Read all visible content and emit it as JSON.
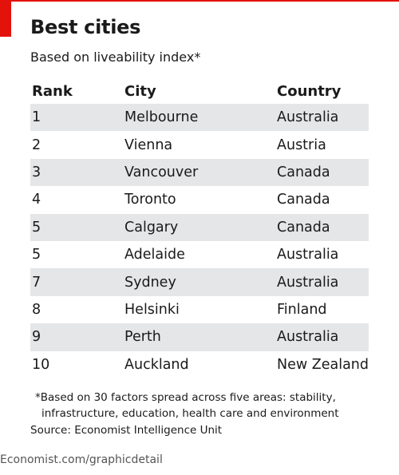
{
  "accent_color": "#e3120b",
  "header": {
    "title": "Best cities",
    "subtitle": "Based on liveability index*"
  },
  "chart_data": {
    "type": "table",
    "columns": [
      "Rank",
      "City",
      "Country"
    ],
    "rows": [
      [
        "1",
        "Melbourne",
        "Australia"
      ],
      [
        "2",
        "Vienna",
        "Austria"
      ],
      [
        "3",
        "Vancouver",
        "Canada"
      ],
      [
        "4",
        "Toronto",
        "Canada"
      ],
      [
        "5",
        "Calgary",
        "Canada"
      ],
      [
        "5",
        "Adelaide",
        "Australia"
      ],
      [
        "7",
        "Sydney",
        "Australia"
      ],
      [
        "8",
        "Helsinki",
        "Finland"
      ],
      [
        "9",
        "Perth",
        "Australia"
      ],
      [
        "10",
        "Auckland",
        "New Zealand"
      ]
    ]
  },
  "footer": {
    "footnote": "*Based on 30 factors spread across five areas: stability, infrastructure, education, health care and environment",
    "source": "Source: Economist Intelligence Unit",
    "credit": "Economist.com/graphicdetail"
  }
}
